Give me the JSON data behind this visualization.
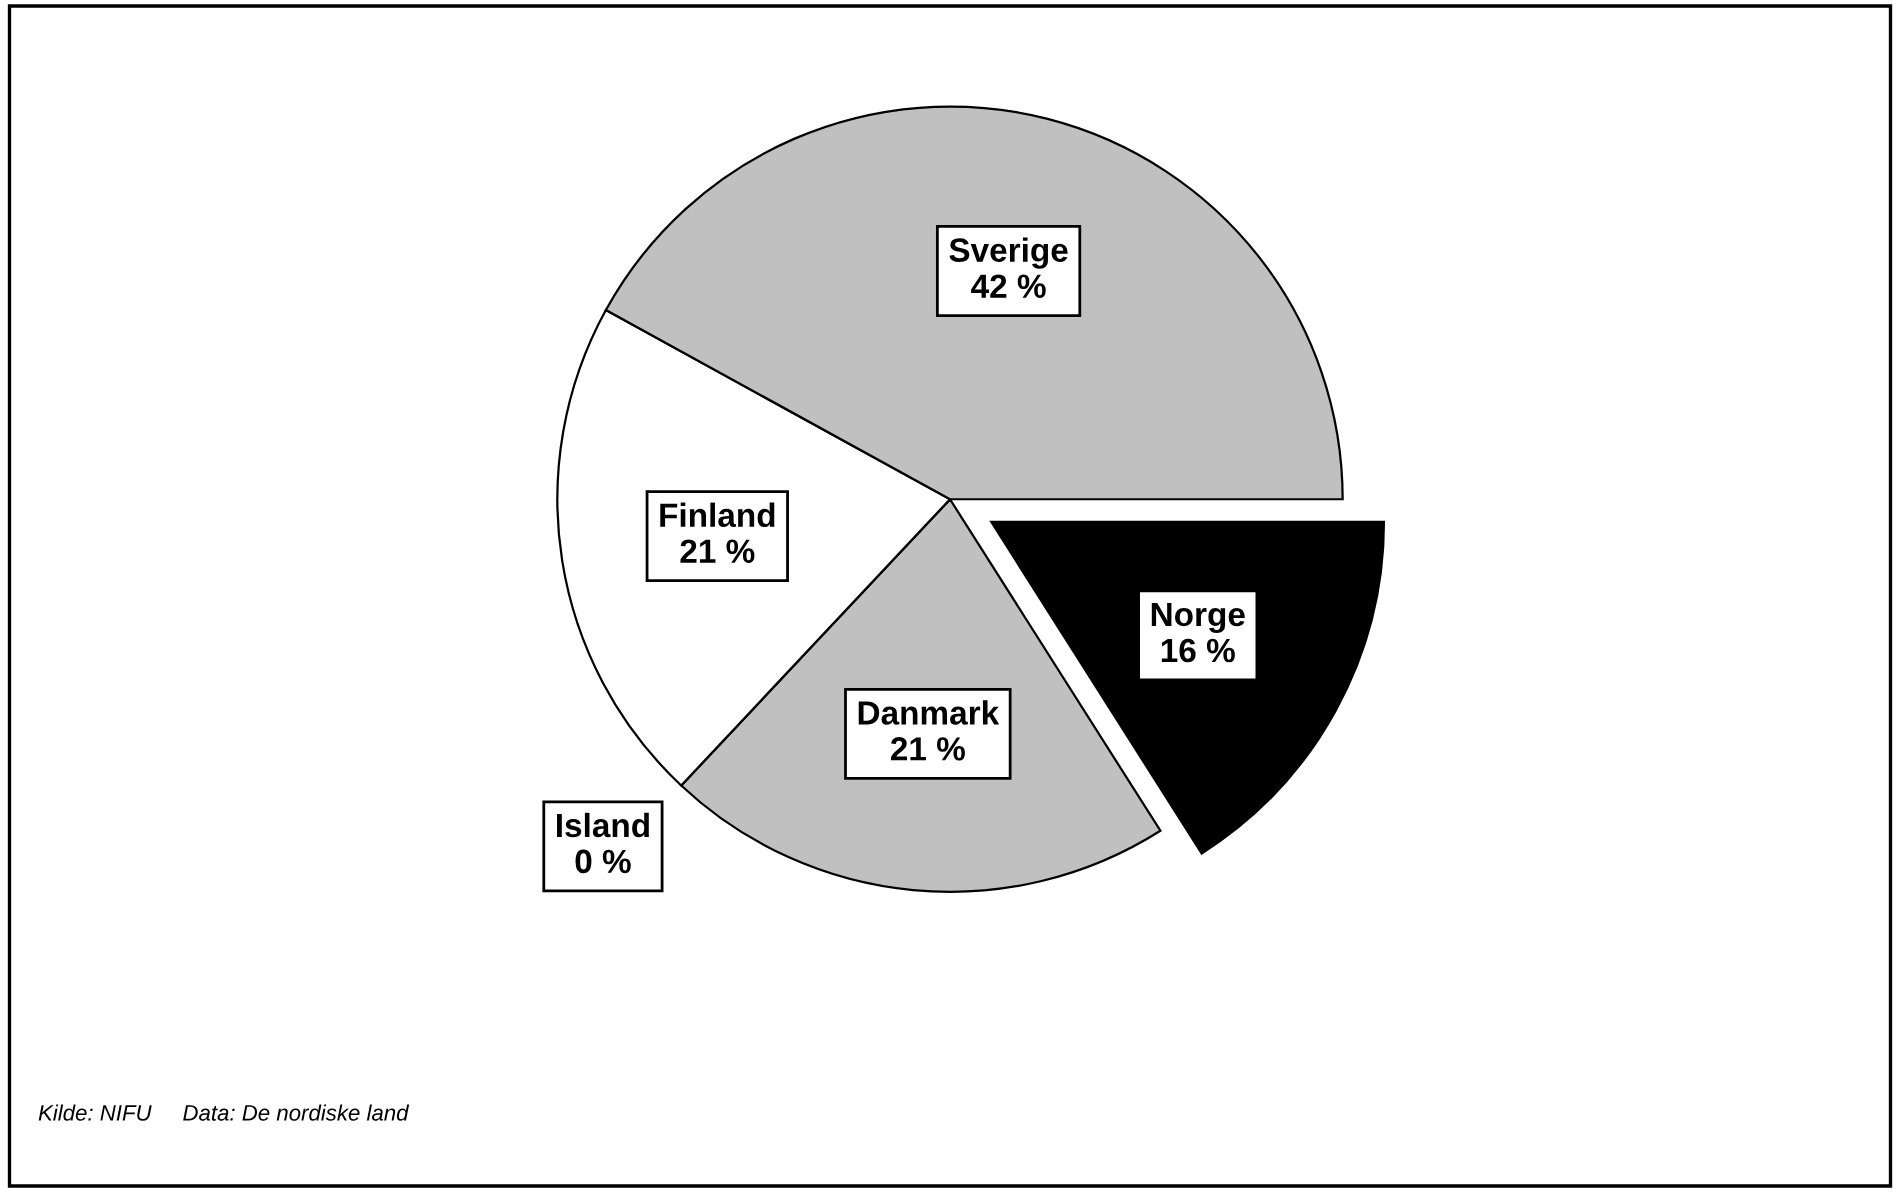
{
  "chart_data": {
    "type": "pie",
    "categories": [
      "Norge",
      "Danmark",
      "Island",
      "Finland",
      "Sverige"
    ],
    "values": [
      16,
      21,
      0,
      21,
      42
    ],
    "value_labels": [
      "16 %",
      "21 %",
      "0 %",
      "21 %",
      "42 %"
    ],
    "colors": [
      "#000000",
      "#c0c0c0",
      "#808080",
      "#ffffff",
      "#c0c0c0"
    ],
    "annotations": [
      "Kilde: NIFU     Data: De nordiske land"
    ]
  }
}
